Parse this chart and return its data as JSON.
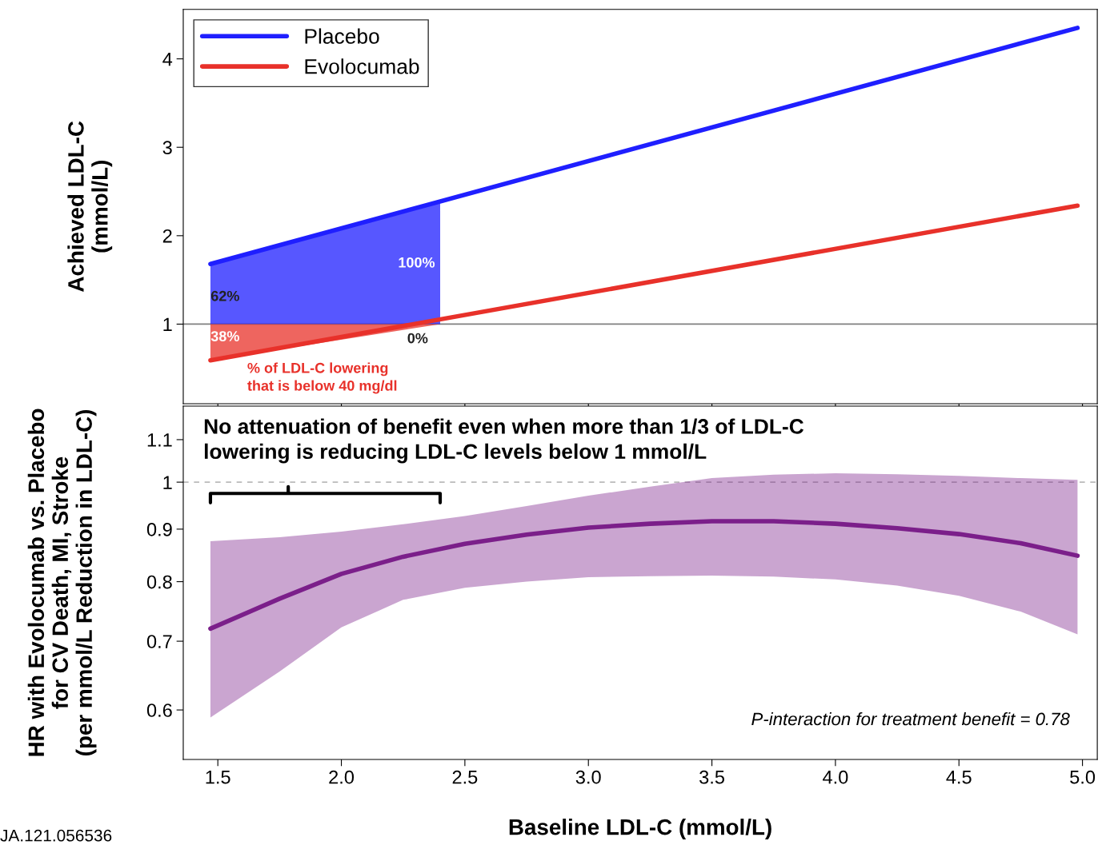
{
  "chart_data": [
    {
      "type": "line",
      "ylabel": "Achieved LDL-C\n(mmol/L)",
      "xlim": [
        1.36,
        5.06
      ],
      "ylim": [
        0.1,
        4.56
      ],
      "xticks": [
        1.5,
        2.0,
        2.5,
        3.0,
        3.5,
        4.0,
        4.5,
        5.0
      ],
      "yticks": [
        1,
        2,
        3,
        4
      ],
      "tick_labels": "y",
      "grid": false,
      "legend": "top left",
      "series": [
        {
          "name": "Placebo",
          "color": "#1f1fff",
          "x": [
            1.47,
            4.98
          ],
          "values": [
            1.68,
            4.35
          ]
        },
        {
          "name": "Evolocumab",
          "color": "#e8312a",
          "x": [
            1.47,
            4.98
          ],
          "values": [
            0.59,
            2.34
          ]
        },
        {
          "type": "area",
          "color": "#1f1fff",
          "x": [
            1.47,
            2.4
          ],
          "values": [
            1.68,
            2.39
          ]
        },
        {
          "type": "area",
          "color": "#e8312a",
          "x": [
            1.47,
            2.4
          ],
          "values": [
            0.59,
            1.0
          ]
        }
      ],
      "ref_lines": [
        {
          "axis": "y",
          "value": 1,
          "color": "#808080",
          "line_style": "solid"
        }
      ],
      "annotations": [
        "62%",
        "100%",
        "38%",
        "0%",
        "% of LDL-C lowering\nthat is below 40 mg/dl"
      ]
    },
    {
      "type": "line",
      "xlabel": "Baseline LDL-C (mmol/L)",
      "ylabel": "HR with Evolocumab vs. Placebo\nfor CV Death, MI, Stroke\n(per mmol/L Reduction in LDL-C)",
      "log": "y",
      "xlim": [
        1.36,
        5.06
      ],
      "ylim": [
        0.537,
        1.186
      ],
      "xticks": [
        1.5,
        {
          "value": 2,
          "label": "2.0"
        },
        2.5,
        {
          "value": 3,
          "label": "3.0"
        },
        3.5,
        {
          "value": 4,
          "label": "4.0"
        },
        4.5,
        {
          "value": 5,
          "label": "5.0"
        }
      ],
      "yticks": [
        0.6,
        0.7,
        0.8,
        0.9,
        1,
        1.1
      ],
      "grid": false,
      "series": [
        {
          "color": "#7b1f8a",
          "x": [
            1.47,
            1.75,
            2.0,
            2.25,
            2.5,
            2.75,
            3.0,
            3.25,
            3.5,
            3.75,
            4.0,
            4.25,
            4.5,
            4.75,
            4.98
          ],
          "values": [
            0.72,
            0.77,
            0.814,
            0.846,
            0.871,
            0.889,
            0.903,
            0.911,
            0.916,
            0.916,
            0.911,
            0.902,
            0.89,
            0.872,
            0.848
          ],
          "lower": [
            0.59,
            0.654,
            0.722,
            0.768,
            0.789,
            0.8,
            0.808,
            0.81,
            0.811,
            0.809,
            0.804,
            0.793,
            0.775,
            0.748,
            0.711
          ],
          "upper": [
            0.876,
            0.884,
            0.895,
            0.91,
            0.927,
            0.948,
            0.97,
            0.99,
            1.009,
            1.017,
            1.02,
            1.018,
            1.014,
            1.009,
            1.005
          ]
        }
      ],
      "ref_lines": [
        {
          "axis": "y",
          "value": 1,
          "color": "#bbbbbb",
          "line_style": "dashed"
        }
      ],
      "annotations": [
        "No attenuation of benefit even when more than 1/3 of LDL-C\nlowering is reducing LDL-C levels below 1 mmol/L",
        "P-interaction for treatment benefit = 0.78",
        "JA.121.056536"
      ]
    }
  ]
}
